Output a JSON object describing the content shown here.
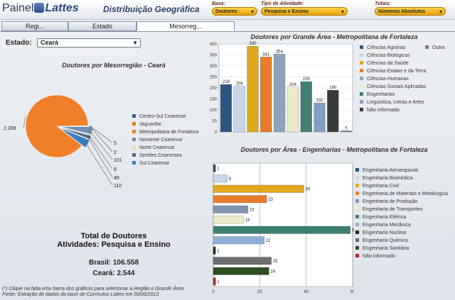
{
  "header": {
    "logo_part1": "Painel",
    "logo_part2": "Lattes",
    "page_title": "Distribuição Geográfica",
    "filters": [
      {
        "label": "Base:",
        "value": "Doutores"
      },
      {
        "label": "Tipo de Atividade:",
        "value": "Pesquisa e Ensino"
      },
      {
        "label": "Totais:",
        "value": "Números Absolutos"
      }
    ]
  },
  "tabs": [
    "Regi...",
    "Estado",
    "Mesorreg..."
  ],
  "estado": {
    "label": "Estado:",
    "value": "Ceará"
  },
  "colors": {
    "accent": "#e8a100",
    "tab_border": "#8a97a8"
  },
  "chart_data": [
    {
      "type": "pie",
      "title": "Doutores por Mesorregião - Ceará",
      "labels": [
        "Centro-Sul Cearense",
        "Jaguaribe",
        "Metropolitana de Fortaleza",
        "Noroeste Cearense",
        "Norte Cearense",
        "Sertões Cearenses",
        "Sul Cearense"
      ],
      "values": [
        5,
        2,
        2269,
        101,
        8,
        49,
        110
      ],
      "data_labels": [
        "5",
        "2",
        "2.269",
        "101",
        "8",
        "49",
        "110"
      ],
      "colors": [
        "#2f5c8f",
        "#e07b00",
        "#f07f2a",
        "#6f8fb5",
        "#e6e0a8",
        "#4b6a88",
        "#3a7cc0"
      ],
      "legend": "right"
    },
    {
      "type": "bar",
      "title": "Doutores por Grande Área - Metropolitana de Fortaleza",
      "categories": [
        "Ciências Agrárias",
        "Ciências Biológicas",
        "Ciências da Saúde",
        "Ciências Exatas e da Terra",
        "Ciências Humanas",
        "Ciências Sociais Aplicadas",
        "Engenharias",
        "Linguística, Letras e Artes",
        "Não informado",
        "Outra"
      ],
      "values": [
        216,
        208,
        390,
        341,
        354,
        204,
        229,
        132,
        190,
        5
      ],
      "colors": [
        "#2b5585",
        "#c8d6ea",
        "#e0a81c",
        "#e77d2a",
        "#8fa2ba",
        "#ecebc9",
        "#3f7f74",
        "#7f9fc6",
        "#3a3a3a",
        "#7a7a7a"
      ],
      "ylim": [
        0,
        400
      ],
      "yticks": [
        0,
        50,
        100,
        150,
        200,
        250,
        300,
        350,
        400
      ],
      "legend": "right"
    },
    {
      "type": "bar",
      "orientation": "horizontal",
      "title": "Doutores por Área - Engenharias - Metropolitana de Fortaleza",
      "categories": [
        "Engenharia Aeroespacial",
        "Engenharia Biomédica",
        "Engenharia Civil",
        "Engenharia de Materiais e Metalúrgica",
        "Engenharia de Produção",
        "Engenharia de Transportes",
        "Engenharia Elétrica",
        "Engenharia Mecânica",
        "Engenharia Nuclear",
        "Engenharia Química",
        "Engenharia Sanitária",
        "Não informado"
      ],
      "values": [
        1,
        6,
        39,
        23,
        15,
        13,
        59,
        22,
        1,
        25,
        24,
        1
      ],
      "colors": [
        "#244d80",
        "#c8d6ea",
        "#e0a81c",
        "#e77d2a",
        "#8094b0",
        "#ecebc9",
        "#3f7f74",
        "#8cb2dc",
        "#222222",
        "#6d6d6d",
        "#2d4e1f",
        "#b22222"
      ],
      "xlim": [
        0,
        60
      ],
      "xticks": [
        0,
        20,
        40,
        60
      ],
      "legend": "right"
    }
  ],
  "totals": {
    "title_line1": "Total de Doutores",
    "title_line2": "Atividades: Pesquisa e Ensino",
    "brasil": "Brasil: 106.558",
    "ceara": "Ceará: 2.544"
  },
  "footer": {
    "note1": "(*) Clique na fatia e/ou barra dos gráficos para selecionar a Região e Grande Área",
    "note2": "Fonte: Extração de dados da base de Currículos Lattes em 30/06/2013"
  }
}
